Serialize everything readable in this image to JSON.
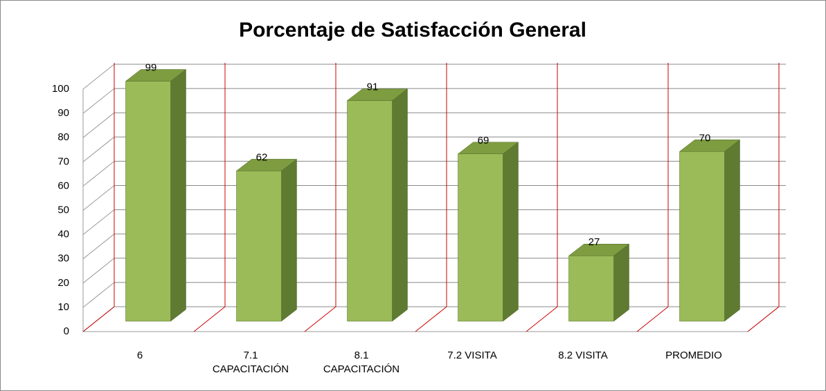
{
  "chart_data": {
    "type": "bar",
    "title": "Porcentaje de Satisfacción General",
    "categories": [
      "6",
      "7.1 CAPACITACIÓN",
      "8.1 CAPACITACIÓN",
      "7.2 VISITA",
      "8.2 VISITA",
      "PROMEDIO"
    ],
    "values": [
      99,
      62,
      91,
      69,
      27,
      70
    ],
    "color": "#9bbb59",
    "ylim": [
      0,
      100
    ],
    "yticks": [
      0,
      10,
      20,
      30,
      40,
      50,
      60,
      70,
      80,
      90,
      100
    ],
    "grid": true
  }
}
